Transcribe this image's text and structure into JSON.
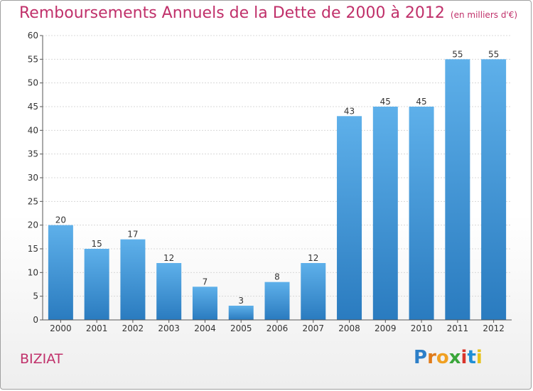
{
  "chart_data": {
    "type": "bar",
    "title": "Remboursements Annuels de la Dette de 2000 à 2012",
    "unit": "(en milliers d'€)",
    "categories": [
      "2000",
      "2001",
      "2002",
      "2003",
      "2004",
      "2005",
      "2006",
      "2007",
      "2008",
      "2009",
      "2010",
      "2011",
      "2012"
    ],
    "values": [
      20,
      15,
      17,
      12,
      7,
      3,
      8,
      12,
      43,
      45,
      45,
      55,
      55
    ],
    "ylim": [
      0,
      60
    ],
    "yticks": [
      0,
      5,
      10,
      15,
      20,
      25,
      30,
      35,
      40,
      45,
      50,
      55,
      60
    ],
    "grid": true,
    "bar_color": "#3b8fd0"
  },
  "footer": {
    "town": "BIZIAT",
    "logo_text": "Proxiti"
  }
}
